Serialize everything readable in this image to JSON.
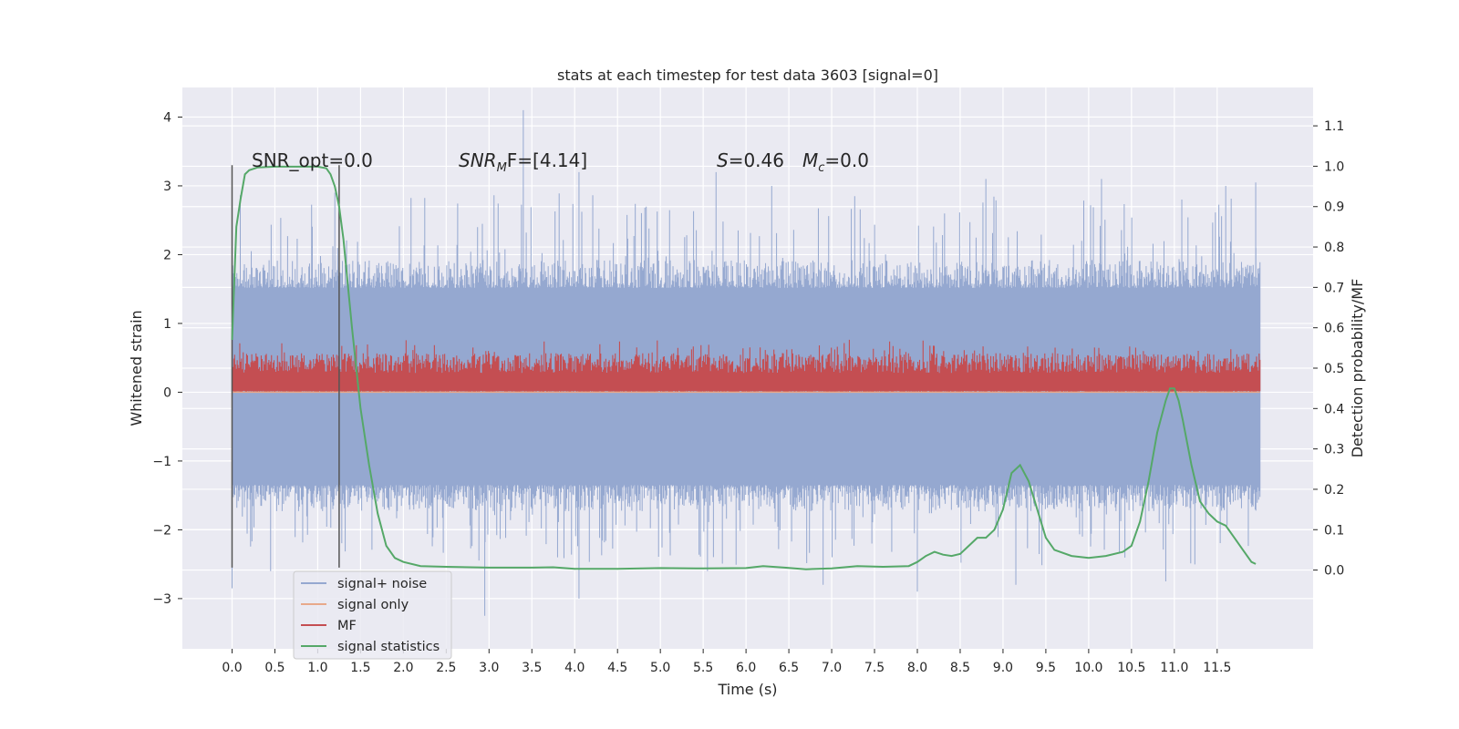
{
  "chart_data": {
    "type": "line",
    "title": "stats at each timestep for test data 3603 [signal=0]",
    "xlabel": "Time (s)",
    "ylabel": "Whitened strain",
    "ylabel_right": "Detection probability/MF",
    "xlim": [
      -0.58,
      12.62
    ],
    "ylim": [
      -3.73,
      4.43
    ],
    "ylim_right": [
      -0.195,
      1.195
    ],
    "x_ticks": [
      0.0,
      0.5,
      1.0,
      1.5,
      2.0,
      2.5,
      3.0,
      3.5,
      4.0,
      4.5,
      5.0,
      5.5,
      6.0,
      6.5,
      7.0,
      7.5,
      8.0,
      8.5,
      9.0,
      9.5,
      10.0,
      10.5,
      11.0,
      11.5
    ],
    "y_ticks": [
      -3,
      -2,
      -1,
      0,
      1,
      2,
      3,
      4
    ],
    "y_ticks_right": [
      0.0,
      0.1,
      0.2,
      0.3,
      0.4,
      0.5,
      0.6,
      0.7,
      0.8,
      0.9,
      1.0,
      1.1
    ],
    "grid": true,
    "legend_position": "lower-left",
    "annotations": {
      "snr_opt": "SNR_opt=0.0",
      "snr_mf_name": "SNR",
      "snr_mf_sub": "M",
      "snr_mf_rest": "F=[4.14]",
      "s_name": "S",
      "s_rest": "=0.46",
      "mc_name": "M",
      "mc_sub": "c",
      "mc_rest": "=0.0"
    },
    "vertical_markers_x": [
      0.0,
      1.25
    ],
    "series": [
      {
        "name": "signal+ noise",
        "color": "#95a8d0",
        "x_range": [
          0.0,
          12.0
        ],
        "typical_range": [
          -1.5,
          1.9
        ],
        "spikes": [
          [
            0.0,
            -2.85
          ],
          [
            0.45,
            -2.6
          ],
          [
            1.2,
            2.9
          ],
          [
            2.95,
            -3.25
          ],
          [
            3.4,
            4.1
          ],
          [
            3.8,
            -2.4
          ],
          [
            4.05,
            3.2
          ],
          [
            4.05,
            -3.0
          ],
          [
            5.55,
            -2.6
          ],
          [
            5.65,
            3.2
          ],
          [
            6.3,
            3.0
          ],
          [
            6.9,
            -2.8
          ],
          [
            8.0,
            -2.9
          ],
          [
            8.8,
            3.1
          ],
          [
            9.15,
            -2.8
          ],
          [
            10.15,
            3.1
          ],
          [
            10.9,
            -2.75
          ],
          [
            11.6,
            3.0
          ],
          [
            11.95,
            3.05
          ]
        ]
      },
      {
        "name": "signal only",
        "color": "#e8a98a",
        "values_note": "flat",
        "constant_y": 0.0
      },
      {
        "name": "MF",
        "color": "#c44e52",
        "x_range": [
          0.0,
          12.0
        ],
        "base_y": 0.0,
        "typical_top": 0.55,
        "max_top": 1.0
      },
      {
        "name": "signal statistics",
        "color": "#55a868",
        "axis": "right",
        "x": [
          0.0,
          0.05,
          0.1,
          0.15,
          0.2,
          0.3,
          0.5,
          0.7,
          0.9,
          1.0,
          1.1,
          1.15,
          1.2,
          1.25,
          1.3,
          1.4,
          1.5,
          1.6,
          1.7,
          1.8,
          1.9,
          2.0,
          2.2,
          2.5,
          3.0,
          3.5,
          3.75,
          4.0,
          4.5,
          5.0,
          5.5,
          6.0,
          6.2,
          6.45,
          6.7,
          7.0,
          7.3,
          7.6,
          7.9,
          8.0,
          8.1,
          8.2,
          8.3,
          8.4,
          8.5,
          8.6,
          8.7,
          8.8,
          8.9,
          9.0,
          9.1,
          9.2,
          9.3,
          9.4,
          9.5,
          9.6,
          9.8,
          10.0,
          10.2,
          10.4,
          10.5,
          10.6,
          10.7,
          10.8,
          10.9,
          10.95,
          11.0,
          11.05,
          11.1,
          11.2,
          11.3,
          11.4,
          11.5,
          11.6,
          11.7,
          11.8,
          11.9,
          11.95
        ],
        "values": [
          0.57,
          0.85,
          0.92,
          0.98,
          0.99,
          0.997,
          0.999,
          0.999,
          0.999,
          0.999,
          0.995,
          0.98,
          0.95,
          0.9,
          0.82,
          0.6,
          0.4,
          0.26,
          0.14,
          0.06,
          0.03,
          0.02,
          0.01,
          0.008,
          0.006,
          0.006,
          0.007,
          0.003,
          0.003,
          0.005,
          0.004,
          0.005,
          0.01,
          0.006,
          0.002,
          0.004,
          0.01,
          0.008,
          0.01,
          0.02,
          0.035,
          0.045,
          0.038,
          0.035,
          0.04,
          0.06,
          0.08,
          0.08,
          0.1,
          0.15,
          0.24,
          0.26,
          0.22,
          0.15,
          0.08,
          0.05,
          0.035,
          0.03,
          0.035,
          0.045,
          0.06,
          0.12,
          0.22,
          0.34,
          0.42,
          0.45,
          0.45,
          0.42,
          0.37,
          0.26,
          0.17,
          0.14,
          0.12,
          0.11,
          0.08,
          0.05,
          0.02,
          0.015
        ]
      }
    ]
  }
}
